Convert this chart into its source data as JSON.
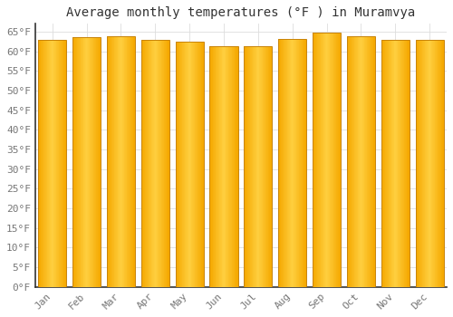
{
  "title": "Average monthly temperatures (°F ) in Muramvya",
  "months": [
    "Jan",
    "Feb",
    "Mar",
    "Apr",
    "May",
    "Jun",
    "Jul",
    "Aug",
    "Sep",
    "Oct",
    "Nov",
    "Dec"
  ],
  "values": [
    63.0,
    63.7,
    63.9,
    63.0,
    62.4,
    61.3,
    61.3,
    63.1,
    64.8,
    63.9,
    63.0,
    63.0
  ],
  "bar_color_center": "#FFD040",
  "bar_color_edge": "#F5A800",
  "bar_edge_color": "#C8840A",
  "background_color": "#FFFFFF",
  "plot_bg_color": "#FFFFFF",
  "grid_color": "#DDDDDD",
  "ylim": [
    0,
    67
  ],
  "ytick_step": 5,
  "title_fontsize": 10,
  "tick_fontsize": 8,
  "label_color": "#777777",
  "spine_color": "#333333"
}
